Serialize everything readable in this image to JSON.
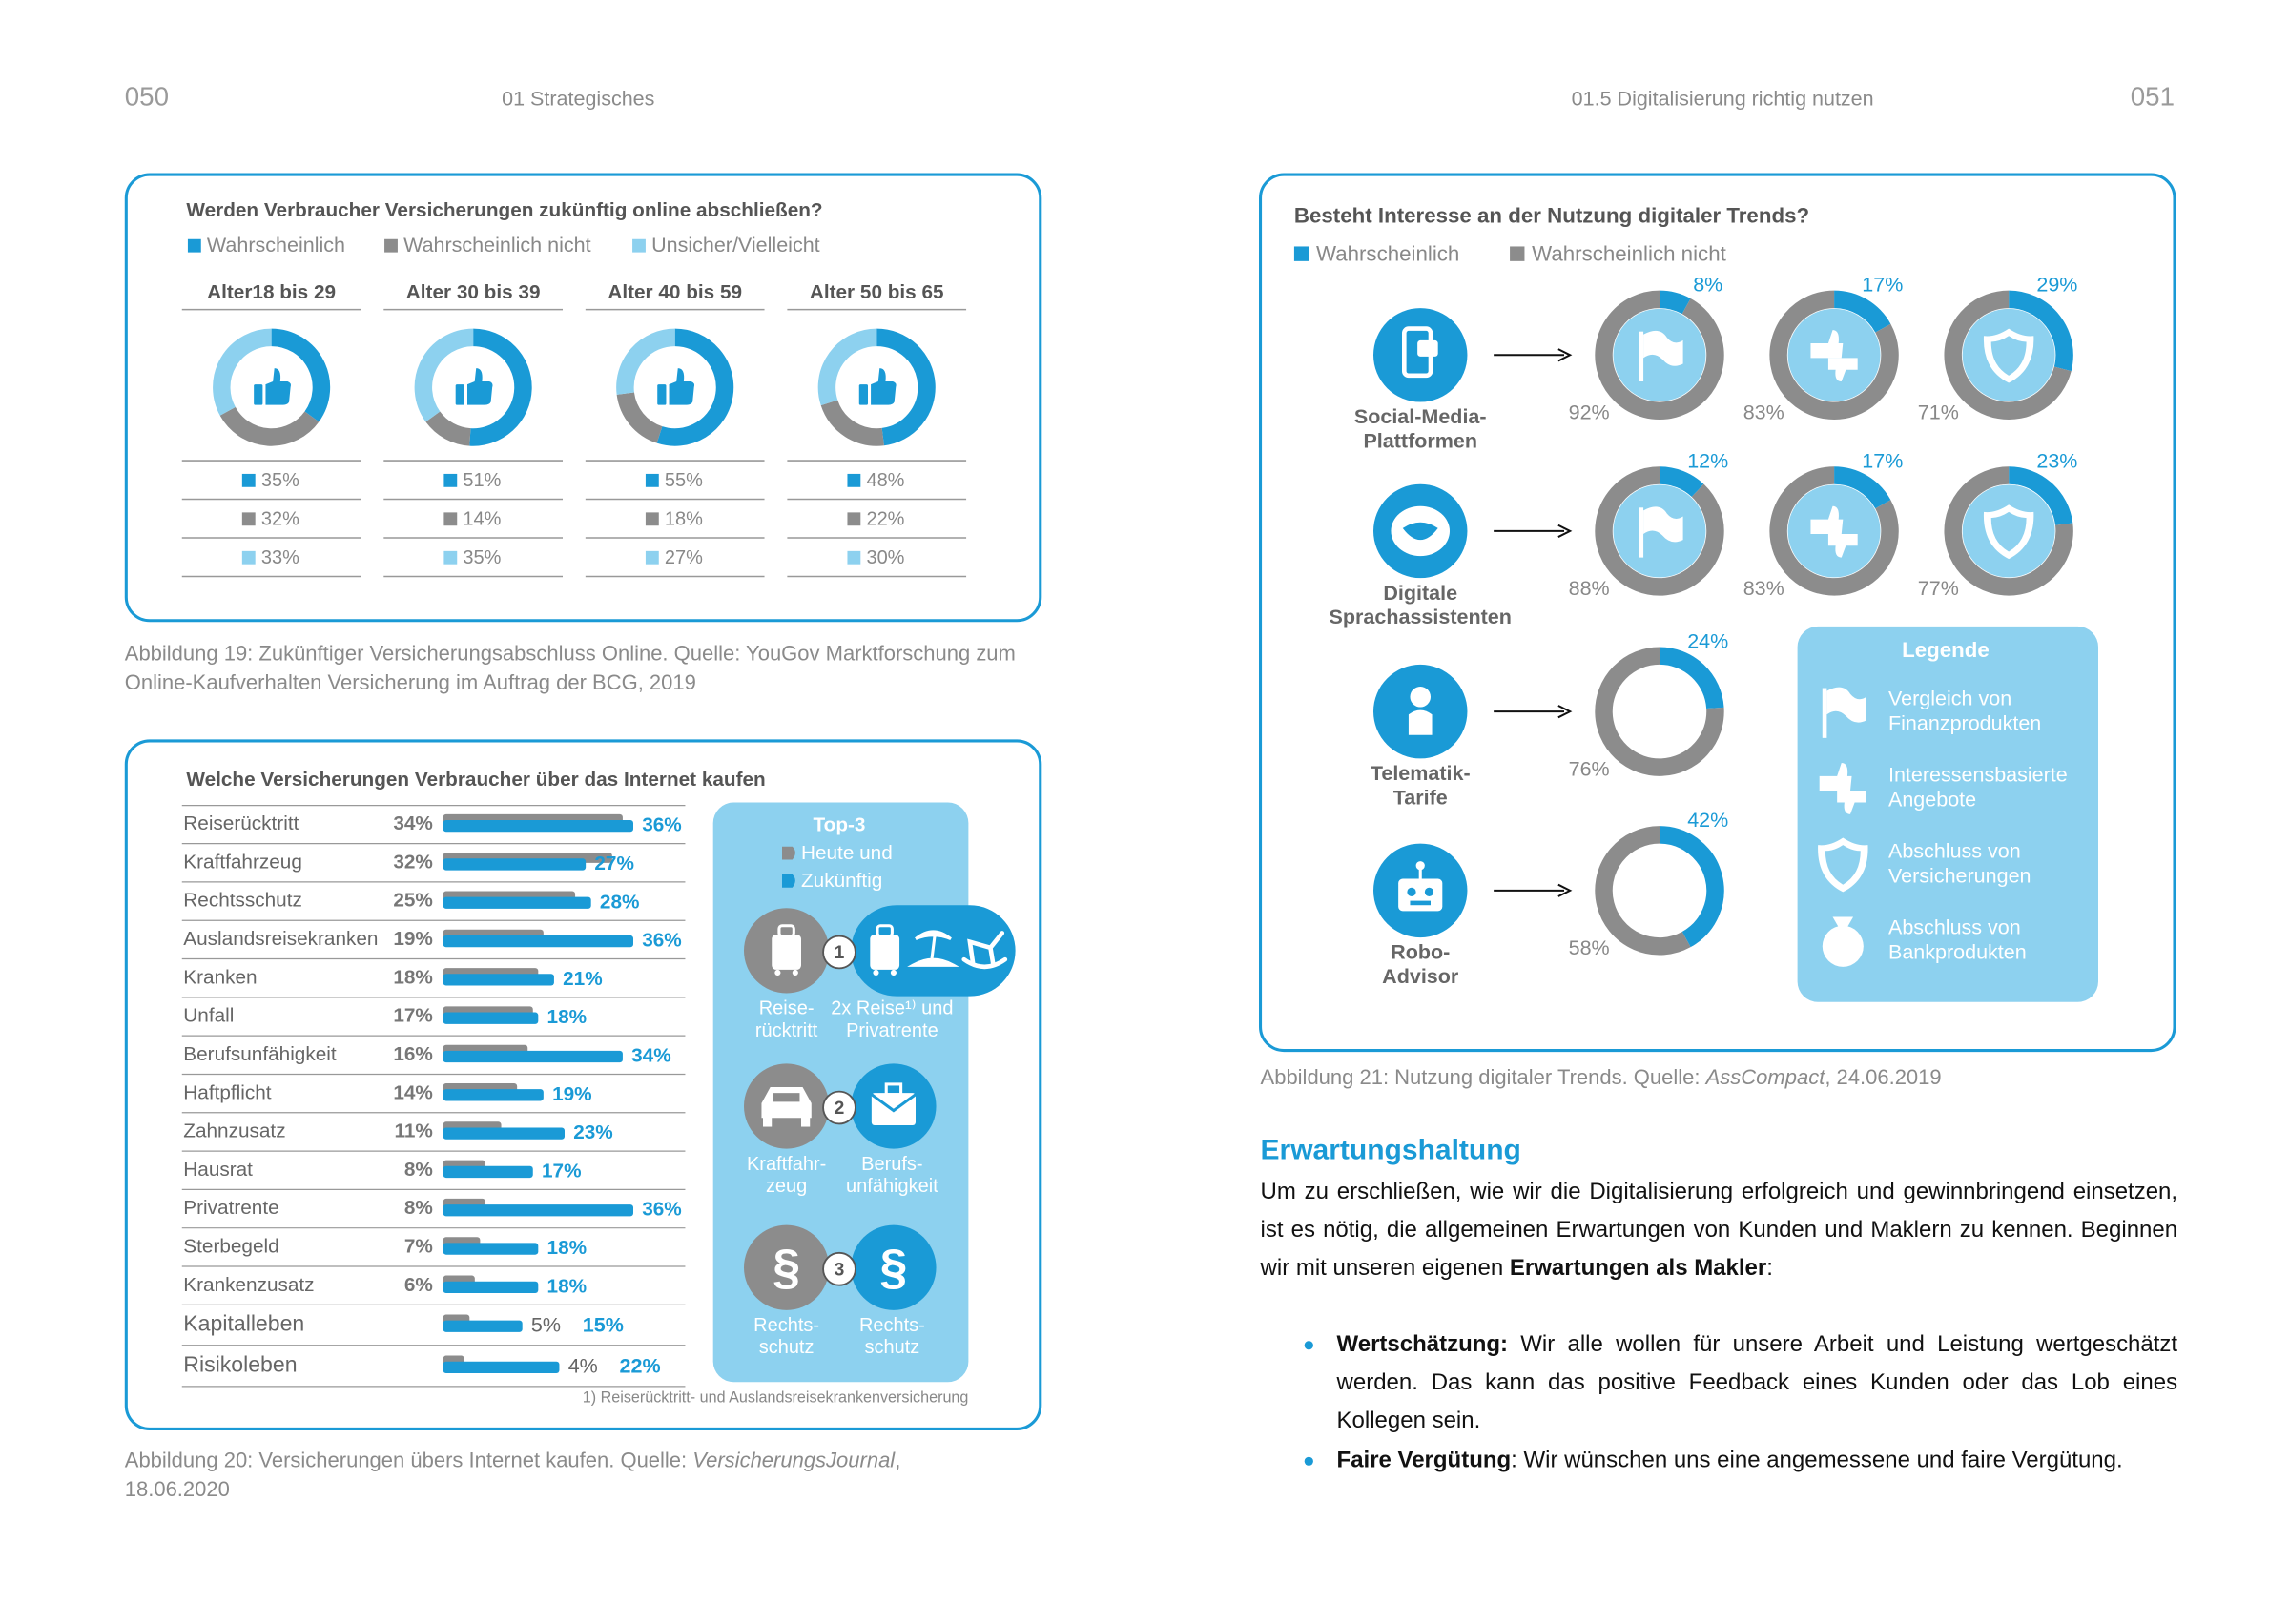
{
  "header": {
    "page_left": "050",
    "section_left": "01 Strategisches",
    "section_right": "01.5 Digitalisierung richtig nutzen",
    "page_right": "051"
  },
  "figure19": {
    "type": "donut",
    "title": "Werden Verbraucher Versicherungen zukünftig online abschließen?",
    "series": [
      {
        "name": "Wahrscheinlich",
        "color": "#1a9ad6"
      },
      {
        "name": "Wahrscheinlich nicht",
        "color": "#8c8c8c"
      },
      {
        "name": "Unsicher/Vielleicht",
        "color": "#8dd1ef"
      }
    ],
    "groups": [
      {
        "name": "Alter18 bis 29",
        "values": [
          35,
          32,
          33
        ],
        "value_labels": [
          "35%",
          "32%",
          "33%"
        ]
      },
      {
        "name": "Alter 30 bis 39",
        "values": [
          51,
          14,
          35
        ],
        "value_labels": [
          "51%",
          "14%",
          "35%"
        ]
      },
      {
        "name": "Alter 40 bis 59",
        "values": [
          55,
          18,
          27
        ],
        "value_labels": [
          "55%",
          "18%",
          "27%"
        ]
      },
      {
        "name": "Alter 50 bis 65",
        "values": [
          48,
          22,
          30
        ],
        "value_labels": [
          "48%",
          "22%",
          "30%"
        ]
      }
    ],
    "caption": "Abbildung 19: Zukünftiger Versicherungsabschluss Online. Quelle: YouGov Marktforschung zum Online-Kaufverhalten Versicherung im Auftrag der BCG, 2019"
  },
  "figure20": {
    "type": "bar",
    "title": "Welche Versicherungen Verbraucher über das Internet kaufen",
    "categories": [
      "Reiserücktritt",
      "Kraftfahrzeug",
      "Rechtsschutz",
      "Auslandsreisekranken",
      "Kranken",
      "Unfall",
      "Berufsunfähigkeit",
      "Haftpflicht",
      "Zahnzusatz",
      "Hausrat",
      "Privatrente",
      "Sterbegeld",
      "Krankenzusatz",
      "Kapitalleben",
      "Risikoleben"
    ],
    "series": [
      {
        "name": "Heute und",
        "color": "#8c8c8c",
        "values": [
          34,
          32,
          25,
          19,
          18,
          17,
          16,
          14,
          11,
          8,
          8,
          7,
          6,
          5,
          4
        ],
        "value_labels": [
          "34%",
          "32%",
          "25%",
          "19%",
          "18%",
          "17%",
          "16%",
          "14%",
          "11%",
          "8%",
          "8%",
          "7%",
          "6%",
          "5%",
          "4%"
        ]
      },
      {
        "name": "Zukünftig",
        "color": "#1a9ad6",
        "values": [
          36,
          27,
          28,
          36,
          21,
          18,
          34,
          19,
          23,
          17,
          36,
          18,
          18,
          15,
          22
        ],
        "value_labels": [
          "36%",
          "27%",
          "28%",
          "36%",
          "21%",
          "18%",
          "34%",
          "19%",
          "23%",
          "17%",
          "36%",
          "18%",
          "18%",
          "15%",
          "22%"
        ]
      }
    ],
    "top3": {
      "title": "Top-3",
      "items": [
        {
          "number": 1,
          "today": [
            "Reise-",
            "rücktritt"
          ],
          "future": [
            "2x Reise¹⁾ und",
            "Privatrente"
          ]
        },
        {
          "number": 2,
          "today": [
            "Kraftfahr-",
            "zeug"
          ],
          "future": [
            "Berufs-",
            "unfähigkeit"
          ]
        },
        {
          "number": 3,
          "symbol": "§",
          "today": [
            "Rechts-",
            "schutz"
          ],
          "future": [
            "Rechts-",
            "schutz"
          ]
        }
      ]
    },
    "footnote": "1) Reiserücktritt- und Auslandsreisekrankenversicherung",
    "caption": {
      "prefix": "Abbildung 20: Versicherungen übers Internet kaufen. Quelle: ",
      "source": "VersicherungsJournal",
      "suffix": ", 18.06.2020"
    }
  },
  "figure21": {
    "type": "donut",
    "title": "Besteht Interesse an der Nutzung digitaler Trends?",
    "series": [
      {
        "name": "Wahrscheinlich",
        "color": "#1a9ad6"
      },
      {
        "name": "Wahrscheinlich nicht",
        "color": "#8c8c8c"
      }
    ],
    "rows": [
      {
        "label": [
          "Social-Media-",
          "Plattformen"
        ],
        "donuts": [
          {
            "values": [
              8,
              92
            ],
            "value_labels": [
              "8%",
              "92%"
            ]
          },
          {
            "values": [
              17,
              83
            ],
            "value_labels": [
              "17%",
              "83%"
            ]
          },
          {
            "values": [
              29,
              71
            ],
            "value_labels": [
              "29%",
              "71%"
            ]
          }
        ]
      },
      {
        "label": [
          "Digitale",
          "Sprachassistenten"
        ],
        "donuts": [
          {
            "values": [
              12,
              88
            ],
            "value_labels": [
              "12%",
              "88%"
            ]
          },
          {
            "values": [
              17,
              83
            ],
            "value_labels": [
              "17%",
              "83%"
            ]
          },
          {
            "values": [
              23,
              77
            ],
            "value_labels": [
              "23%",
              "77%"
            ]
          }
        ]
      },
      {
        "label": [
          "Telematik-",
          "Tarife"
        ],
        "donuts": [
          {
            "values": [
              24,
              76
            ],
            "value_labels": [
              "24%",
              "76%"
            ]
          }
        ]
      },
      {
        "label": [
          "Robo-",
          "Advisor"
        ],
        "donuts": [
          {
            "values": [
              42,
              58
            ],
            "value_labels": [
              "42%",
              "58%"
            ]
          }
        ]
      }
    ],
    "legend": {
      "title": "Legende",
      "items": [
        [
          "Vergleich von",
          "Finanzprodukten"
        ],
        [
          "Interessensbasierte",
          "Angebote"
        ],
        [
          "Abschluss von",
          "Versicherungen"
        ],
        [
          "Abschluss von",
          "Bankprodukten"
        ]
      ]
    },
    "caption": {
      "prefix": "Abbildung 21: Nutzung digitaler Trends. Quelle: ",
      "source": "AssCompact",
      "suffix": ", 24.06.2019"
    }
  },
  "section": {
    "heading": "Erwartungshaltung",
    "paragraph": [
      "Um zu erschließen, wie wir die Digitalisierung erfolgreich und gewinnbringend einsetzen, ist es nötig, die allgemeinen Erwartungen von Kunden und Maklern zu kennen. Beginnen wir mit unseren eigenen ",
      "Erwartungen als Makler",
      ":"
    ],
    "bullets": [
      {
        "term": "Wertschätzung:",
        "text": " Wir alle wollen für unsere Arbeit und Leistung wertgeschätzt werden. Das kann das positive Feedback eines Kunden oder das Lob eines Kollegen sein."
      },
      {
        "term": "Faire Vergütung",
        "text": ": Wir wünschen uns eine angemessene und faire Vergütung."
      }
    ]
  }
}
